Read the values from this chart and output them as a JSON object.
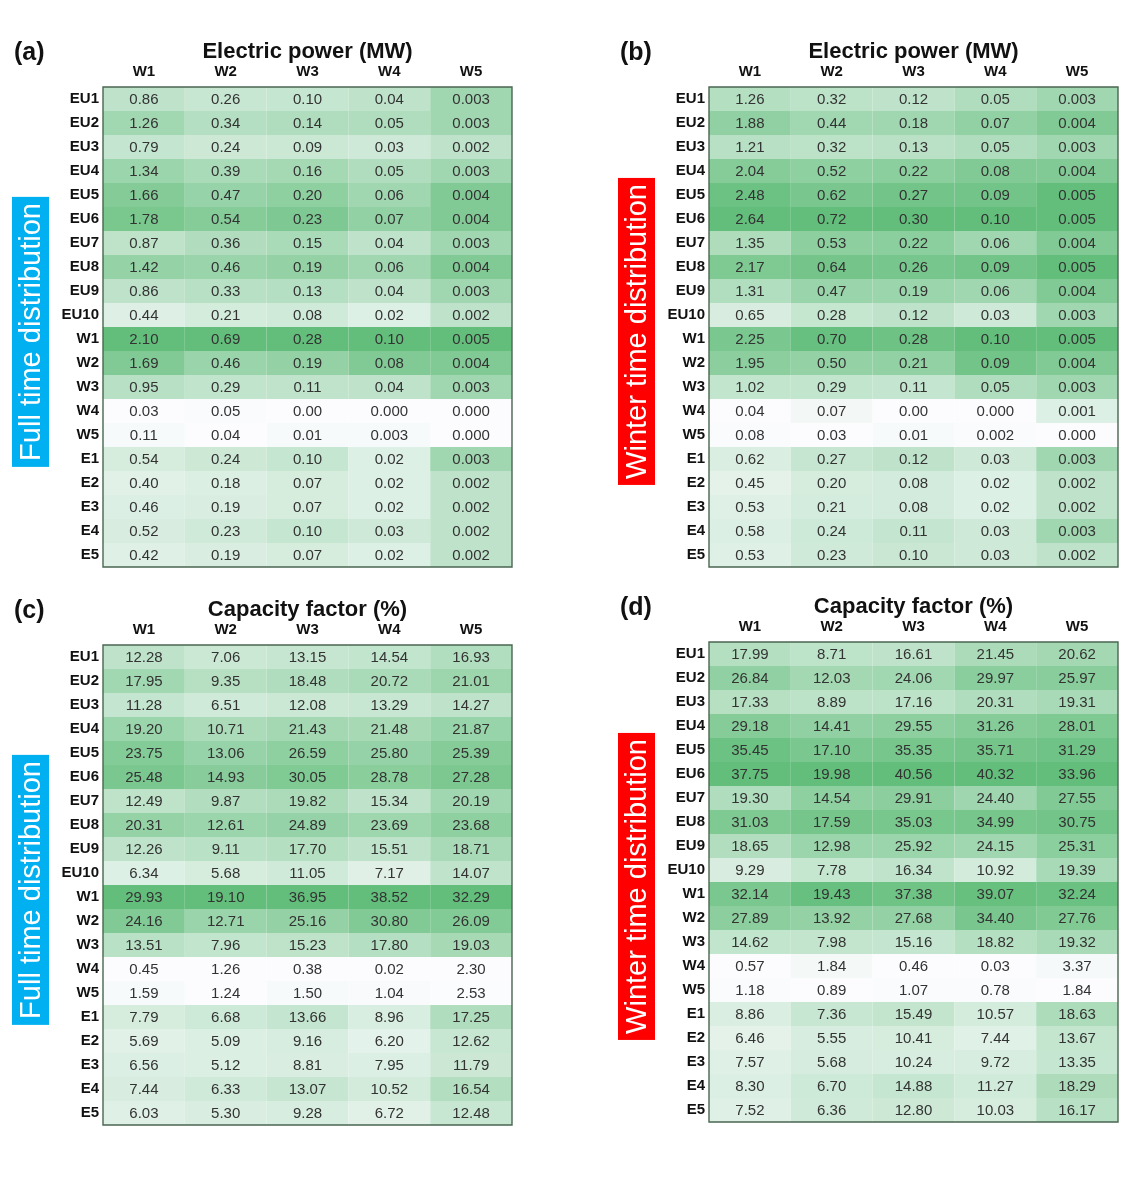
{
  "chart_data": [
    {
      "type": "heatmap",
      "title": "Electric power (MW)",
      "ylabel": "Full time distribution",
      "annotations": [
        "(a)"
      ],
      "categories": [
        "W1",
        "W2",
        "W3",
        "W4",
        "W5"
      ],
      "y_categories": [
        "EU1",
        "EU2",
        "EU3",
        "EU4",
        "EU5",
        "EU6",
        "EU7",
        "EU8",
        "EU9",
        "EU10",
        "W1",
        "W2",
        "W3",
        "W4",
        "W5",
        "E1",
        "E2",
        "E3",
        "E4",
        "E5"
      ],
      "cells": [
        [
          0.86,
          0.26,
          0.1,
          0.04,
          0.003
        ],
        [
          1.26,
          0.34,
          0.14,
          0.05,
          0.003
        ],
        [
          0.79,
          0.24,
          0.09,
          0.03,
          0.002
        ],
        [
          1.34,
          0.39,
          0.16,
          0.05,
          0.003
        ],
        [
          1.66,
          0.47,
          0.2,
          0.06,
          0.004
        ],
        [
          1.78,
          0.54,
          0.23,
          0.07,
          0.004
        ],
        [
          0.87,
          0.36,
          0.15,
          0.04,
          0.003
        ],
        [
          1.42,
          0.46,
          0.19,
          0.06,
          0.004
        ],
        [
          0.86,
          0.33,
          0.13,
          0.04,
          0.003
        ],
        [
          0.44,
          0.21,
          0.08,
          0.02,
          0.002
        ],
        [
          2.1,
          0.69,
          0.28,
          0.1,
          0.005
        ],
        [
          1.69,
          0.46,
          0.19,
          0.08,
          0.004
        ],
        [
          0.95,
          0.29,
          0.11,
          0.04,
          0.003
        ],
        [
          0.03,
          0.05,
          0.0,
          0.0,
          0.0
        ],
        [
          0.11,
          0.04,
          0.01,
          0.003,
          0.0
        ],
        [
          0.54,
          0.24,
          0.1,
          0.02,
          0.003
        ],
        [
          0.4,
          0.18,
          0.07,
          0.02,
          0.002
        ],
        [
          0.46,
          0.19,
          0.07,
          0.02,
          0.002
        ],
        [
          0.52,
          0.23,
          0.1,
          0.03,
          0.002
        ],
        [
          0.42,
          0.19,
          0.07,
          0.02,
          0.002
        ]
      ],
      "cell_labels": [
        [
          "0.86",
          "0.26",
          "0.10",
          "0.04",
          "0.003"
        ],
        [
          "1.26",
          "0.34",
          "0.14",
          "0.05",
          "0.003"
        ],
        [
          "0.79",
          "0.24",
          "0.09",
          "0.03",
          "0.002"
        ],
        [
          "1.34",
          "0.39",
          "0.16",
          "0.05",
          "0.003"
        ],
        [
          "1.66",
          "0.47",
          "0.20",
          "0.06",
          "0.004"
        ],
        [
          "1.78",
          "0.54",
          "0.23",
          "0.07",
          "0.004"
        ],
        [
          "0.87",
          "0.36",
          "0.15",
          "0.04",
          "0.003"
        ],
        [
          "1.42",
          "0.46",
          "0.19",
          "0.06",
          "0.004"
        ],
        [
          "0.86",
          "0.33",
          "0.13",
          "0.04",
          "0.003"
        ],
        [
          "0.44",
          "0.21",
          "0.08",
          "0.02",
          "0.002"
        ],
        [
          "2.10",
          "0.69",
          "0.28",
          "0.10",
          "0.005"
        ],
        [
          "1.69",
          "0.46",
          "0.19",
          "0.08",
          "0.004"
        ],
        [
          "0.95",
          "0.29",
          "0.11",
          "0.04",
          "0.003"
        ],
        [
          "0.03",
          "0.05",
          "0.00",
          "0.000",
          "0.000"
        ],
        [
          "0.11",
          "0.04",
          "0.01",
          "0.003",
          "0.000"
        ],
        [
          "0.54",
          "0.24",
          "0.10",
          "0.02",
          "0.003"
        ],
        [
          "0.40",
          "0.18",
          "0.07",
          "0.02",
          "0.002"
        ],
        [
          "0.46",
          "0.19",
          "0.07",
          "0.02",
          "0.002"
        ],
        [
          "0.52",
          "0.23",
          "0.10",
          "0.03",
          "0.002"
        ],
        [
          "0.42",
          "0.19",
          "0.07",
          "0.02",
          "0.002"
        ]
      ]
    },
    {
      "type": "heatmap",
      "title": "Electric power (MW)",
      "ylabel": "Winter time distribution",
      "annotations": [
        "(b)"
      ],
      "categories": [
        "W1",
        "W2",
        "W3",
        "W4",
        "W5"
      ],
      "y_categories": [
        "EU1",
        "EU2",
        "EU3",
        "EU4",
        "EU5",
        "EU6",
        "EU7",
        "EU8",
        "EU9",
        "EU10",
        "W1",
        "W2",
        "W3",
        "W4",
        "W5",
        "E1",
        "E2",
        "E3",
        "E4",
        "E5"
      ],
      "cells": [
        [
          1.26,
          0.32,
          0.12,
          0.05,
          0.003
        ],
        [
          1.88,
          0.44,
          0.18,
          0.07,
          0.004
        ],
        [
          1.21,
          0.32,
          0.13,
          0.05,
          0.003
        ],
        [
          2.04,
          0.52,
          0.22,
          0.08,
          0.004
        ],
        [
          2.48,
          0.62,
          0.27,
          0.09,
          0.005
        ],
        [
          2.64,
          0.72,
          0.3,
          0.1,
          0.005
        ],
        [
          1.35,
          0.53,
          0.22,
          0.06,
          0.004
        ],
        [
          2.17,
          0.64,
          0.26,
          0.09,
          0.005
        ],
        [
          1.31,
          0.47,
          0.19,
          0.06,
          0.004
        ],
        [
          0.65,
          0.28,
          0.12,
          0.03,
          0.003
        ],
        [
          2.25,
          0.7,
          0.28,
          0.1,
          0.005
        ],
        [
          1.95,
          0.5,
          0.21,
          0.09,
          0.004
        ],
        [
          1.02,
          0.29,
          0.11,
          0.05,
          0.003
        ],
        [
          0.04,
          0.07,
          0.0,
          0.0,
          0.001
        ],
        [
          0.08,
          0.03,
          0.01,
          0.002,
          0.0
        ],
        [
          0.62,
          0.27,
          0.12,
          0.03,
          0.003
        ],
        [
          0.45,
          0.2,
          0.08,
          0.02,
          0.002
        ],
        [
          0.53,
          0.21,
          0.08,
          0.02,
          0.002
        ],
        [
          0.58,
          0.24,
          0.11,
          0.03,
          0.003
        ],
        [
          0.53,
          0.23,
          0.1,
          0.03,
          0.002
        ]
      ],
      "cell_labels": [
        [
          "1.26",
          "0.32",
          "0.12",
          "0.05",
          "0.003"
        ],
        [
          "1.88",
          "0.44",
          "0.18",
          "0.07",
          "0.004"
        ],
        [
          "1.21",
          "0.32",
          "0.13",
          "0.05",
          "0.003"
        ],
        [
          "2.04",
          "0.52",
          "0.22",
          "0.08",
          "0.004"
        ],
        [
          "2.48",
          "0.62",
          "0.27",
          "0.09",
          "0.005"
        ],
        [
          "2.64",
          "0.72",
          "0.30",
          "0.10",
          "0.005"
        ],
        [
          "1.35",
          "0.53",
          "0.22",
          "0.06",
          "0.004"
        ],
        [
          "2.17",
          "0.64",
          "0.26",
          "0.09",
          "0.005"
        ],
        [
          "1.31",
          "0.47",
          "0.19",
          "0.06",
          "0.004"
        ],
        [
          "0.65",
          "0.28",
          "0.12",
          "0.03",
          "0.003"
        ],
        [
          "2.25",
          "0.70",
          "0.28",
          "0.10",
          "0.005"
        ],
        [
          "1.95",
          "0.50",
          "0.21",
          "0.09",
          "0.004"
        ],
        [
          "1.02",
          "0.29",
          "0.11",
          "0.05",
          "0.003"
        ],
        [
          "0.04",
          "0.07",
          "0.00",
          "0.000",
          "0.001"
        ],
        [
          "0.08",
          "0.03",
          "0.01",
          "0.002",
          "0.000"
        ],
        [
          "0.62",
          "0.27",
          "0.12",
          "0.03",
          "0.003"
        ],
        [
          "0.45",
          "0.20",
          "0.08",
          "0.02",
          "0.002"
        ],
        [
          "0.53",
          "0.21",
          "0.08",
          "0.02",
          "0.002"
        ],
        [
          "0.58",
          "0.24",
          "0.11",
          "0.03",
          "0.003"
        ],
        [
          "0.53",
          "0.23",
          "0.10",
          "0.03",
          "0.002"
        ]
      ]
    },
    {
      "type": "heatmap",
      "title": "Capacity factor (%)",
      "ylabel": "Full time distribution",
      "annotations": [
        "(c)"
      ],
      "categories": [
        "W1",
        "W2",
        "W3",
        "W4",
        "W5"
      ],
      "y_categories": [
        "EU1",
        "EU2",
        "EU3",
        "EU4",
        "EU5",
        "EU6",
        "EU7",
        "EU8",
        "EU9",
        "EU10",
        "W1",
        "W2",
        "W3",
        "W4",
        "W5",
        "E1",
        "E2",
        "E3",
        "E4",
        "E5"
      ],
      "cells": [
        [
          12.28,
          7.06,
          13.15,
          14.54,
          16.93
        ],
        [
          17.95,
          9.35,
          18.48,
          20.72,
          21.01
        ],
        [
          11.28,
          6.51,
          12.08,
          13.29,
          14.27
        ],
        [
          19.2,
          10.71,
          21.43,
          21.48,
          21.87
        ],
        [
          23.75,
          13.06,
          26.59,
          25.8,
          25.39
        ],
        [
          25.48,
          14.93,
          30.05,
          28.78,
          27.28
        ],
        [
          12.49,
          9.87,
          19.82,
          15.34,
          20.19
        ],
        [
          20.31,
          12.61,
          24.89,
          23.69,
          23.68
        ],
        [
          12.26,
          9.11,
          17.7,
          15.51,
          18.71
        ],
        [
          6.34,
          5.68,
          11.05,
          7.17,
          14.07
        ],
        [
          29.93,
          19.1,
          36.95,
          38.52,
          32.29
        ],
        [
          24.16,
          12.71,
          25.16,
          30.8,
          26.09
        ],
        [
          13.51,
          7.96,
          15.23,
          17.8,
          19.03
        ],
        [
          0.45,
          1.26,
          0.38,
          0.02,
          2.3
        ],
        [
          1.59,
          1.24,
          1.5,
          1.04,
          2.53
        ],
        [
          7.79,
          6.68,
          13.66,
          8.96,
          17.25
        ],
        [
          5.69,
          5.09,
          9.16,
          6.2,
          12.62
        ],
        [
          6.56,
          5.12,
          8.81,
          7.95,
          11.79
        ],
        [
          7.44,
          6.33,
          13.07,
          10.52,
          16.54
        ],
        [
          6.03,
          5.3,
          9.28,
          6.72,
          12.48
        ]
      ],
      "cell_labels": [
        [
          "12.28",
          "7.06",
          "13.15",
          "14.54",
          "16.93"
        ],
        [
          "17.95",
          "9.35",
          "18.48",
          "20.72",
          "21.01"
        ],
        [
          "11.28",
          "6.51",
          "12.08",
          "13.29",
          "14.27"
        ],
        [
          "19.20",
          "10.71",
          "21.43",
          "21.48",
          "21.87"
        ],
        [
          "23.75",
          "13.06",
          "26.59",
          "25.80",
          "25.39"
        ],
        [
          "25.48",
          "14.93",
          "30.05",
          "28.78",
          "27.28"
        ],
        [
          "12.49",
          "9.87",
          "19.82",
          "15.34",
          "20.19"
        ],
        [
          "20.31",
          "12.61",
          "24.89",
          "23.69",
          "23.68"
        ],
        [
          "12.26",
          "9.11",
          "17.70",
          "15.51",
          "18.71"
        ],
        [
          "6.34",
          "5.68",
          "11.05",
          "7.17",
          "14.07"
        ],
        [
          "29.93",
          "19.10",
          "36.95",
          "38.52",
          "32.29"
        ],
        [
          "24.16",
          "12.71",
          "25.16",
          "30.80",
          "26.09"
        ],
        [
          "13.51",
          "7.96",
          "15.23",
          "17.80",
          "19.03"
        ],
        [
          "0.45",
          "1.26",
          "0.38",
          "0.02",
          "2.30"
        ],
        [
          "1.59",
          "1.24",
          "1.50",
          "1.04",
          "2.53"
        ],
        [
          "7.79",
          "6.68",
          "13.66",
          "8.96",
          "17.25"
        ],
        [
          "5.69",
          "5.09",
          "9.16",
          "6.20",
          "12.62"
        ],
        [
          "6.56",
          "5.12",
          "8.81",
          "7.95",
          "11.79"
        ],
        [
          "7.44",
          "6.33",
          "13.07",
          "10.52",
          "16.54"
        ],
        [
          "6.03",
          "5.30",
          "9.28",
          "6.72",
          "12.48"
        ]
      ]
    },
    {
      "type": "heatmap",
      "title": "Capacity factor (%)",
      "ylabel": "Winter time distribution",
      "annotations": [
        "(d)"
      ],
      "categories": [
        "W1",
        "W2",
        "W3",
        "W4",
        "W5"
      ],
      "y_categories": [
        "EU1",
        "EU2",
        "EU3",
        "EU4",
        "EU5",
        "EU6",
        "EU7",
        "EU8",
        "EU9",
        "EU10",
        "W1",
        "W2",
        "W3",
        "W4",
        "W5",
        "E1",
        "E2",
        "E3",
        "E4",
        "E5"
      ],
      "cells": [
        [
          17.99,
          8.71,
          16.61,
          21.45,
          20.62
        ],
        [
          26.84,
          12.03,
          24.06,
          29.97,
          25.97
        ],
        [
          17.33,
          8.89,
          17.16,
          20.31,
          19.31
        ],
        [
          29.18,
          14.41,
          29.55,
          31.26,
          28.01
        ],
        [
          35.45,
          17.1,
          35.35,
          35.71,
          31.29
        ],
        [
          37.75,
          19.98,
          40.56,
          40.32,
          33.96
        ],
        [
          19.3,
          14.54,
          29.91,
          24.4,
          27.55
        ],
        [
          31.03,
          17.59,
          35.03,
          34.99,
          30.75
        ],
        [
          18.65,
          12.98,
          25.92,
          24.15,
          25.31
        ],
        [
          9.29,
          7.78,
          16.34,
          10.92,
          19.39
        ],
        [
          32.14,
          19.43,
          37.38,
          39.07,
          32.24
        ],
        [
          27.89,
          13.92,
          27.68,
          34.4,
          27.76
        ],
        [
          14.62,
          7.98,
          15.16,
          18.82,
          19.32
        ],
        [
          0.57,
          1.84,
          0.46,
          0.03,
          3.37
        ],
        [
          1.18,
          0.89,
          1.07,
          0.78,
          1.84
        ],
        [
          8.86,
          7.36,
          15.49,
          10.57,
          18.63
        ],
        [
          6.46,
          5.55,
          10.41,
          7.44,
          13.67
        ],
        [
          7.57,
          5.68,
          10.24,
          9.72,
          13.35
        ],
        [
          8.3,
          6.7,
          14.88,
          11.27,
          18.29
        ],
        [
          7.52,
          6.36,
          12.8,
          10.03,
          16.17
        ]
      ],
      "cell_labels": [
        [
          "17.99",
          "8.71",
          "16.61",
          "21.45",
          "20.62"
        ],
        [
          "26.84",
          "12.03",
          "24.06",
          "29.97",
          "25.97"
        ],
        [
          "17.33",
          "8.89",
          "17.16",
          "20.31",
          "19.31"
        ],
        [
          "29.18",
          "14.41",
          "29.55",
          "31.26",
          "28.01"
        ],
        [
          "35.45",
          "17.10",
          "35.35",
          "35.71",
          "31.29"
        ],
        [
          "37.75",
          "19.98",
          "40.56",
          "40.32",
          "33.96"
        ],
        [
          "19.30",
          "14.54",
          "29.91",
          "24.40",
          "27.55"
        ],
        [
          "31.03",
          "17.59",
          "35.03",
          "34.99",
          "30.75"
        ],
        [
          "18.65",
          "12.98",
          "25.92",
          "24.15",
          "25.31"
        ],
        [
          "9.29",
          "7.78",
          "16.34",
          "10.92",
          "19.39"
        ],
        [
          "32.14",
          "19.43",
          "37.38",
          "39.07",
          "32.24"
        ],
        [
          "27.89",
          "13.92",
          "27.68",
          "34.40",
          "27.76"
        ],
        [
          "14.62",
          "7.98",
          "15.16",
          "18.82",
          "19.32"
        ],
        [
          "0.57",
          "1.84",
          "0.46",
          "0.03",
          "3.37"
        ],
        [
          "1.18",
          "0.89",
          "1.07",
          "0.78",
          "1.84"
        ],
        [
          "8.86",
          "7.36",
          "15.49",
          "10.57",
          "18.63"
        ],
        [
          "6.46",
          "5.55",
          "10.41",
          "7.44",
          "13.67"
        ],
        [
          "7.57",
          "5.68",
          "10.24",
          "9.72",
          "13.35"
        ],
        [
          "8.30",
          "6.70",
          "14.88",
          "11.27",
          "18.29"
        ],
        [
          "7.52",
          "6.36",
          "12.80",
          "10.03",
          "16.17"
        ]
      ]
    }
  ]
}
